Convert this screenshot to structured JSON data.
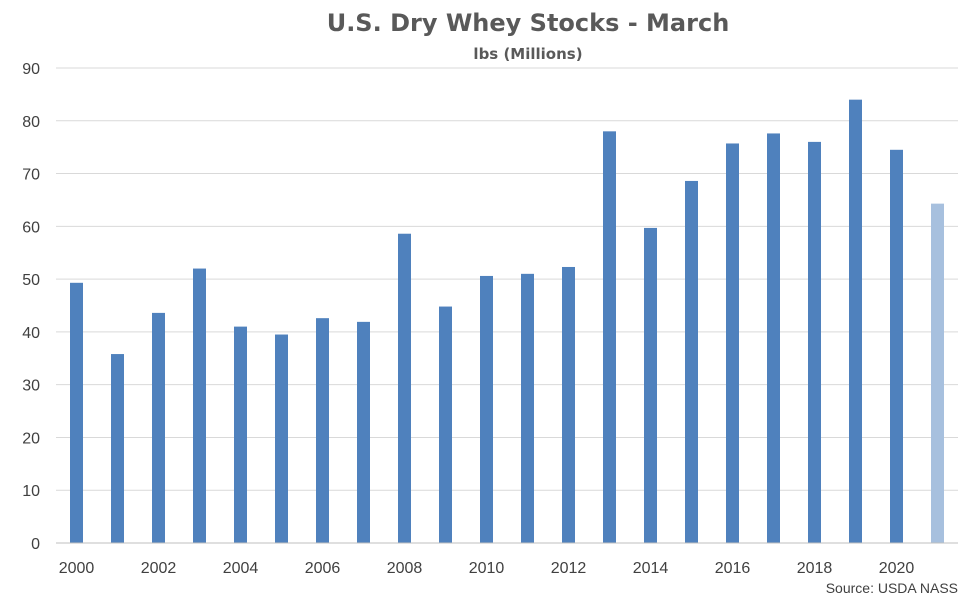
{
  "chart_data": {
    "type": "bar",
    "title": "U.S. Dry Whey Stocks - March",
    "subtitle": "lbs (Millions)",
    "source": "Source: USDA NASS",
    "categories": [
      "2000",
      "2001",
      "2002",
      "2003",
      "2004",
      "2005",
      "2006",
      "2007",
      "2008",
      "2009",
      "2010",
      "2011",
      "2012",
      "2013",
      "2014",
      "2015",
      "2016",
      "2017",
      "2018",
      "2019",
      "2020",
      "2021"
    ],
    "x_tick_labels": [
      "2000",
      "2002",
      "2004",
      "2006",
      "2008",
      "2010",
      "2012",
      "2014",
      "2016",
      "2018",
      "2020"
    ],
    "values": [
      49.3,
      35.8,
      43.6,
      52.0,
      41.0,
      39.5,
      42.6,
      41.9,
      58.6,
      44.8,
      50.6,
      51.0,
      52.3,
      78.0,
      59.7,
      68.6,
      75.7,
      77.6,
      76.0,
      84.0,
      74.5,
      64.3
    ],
    "ylim": [
      0,
      90
    ],
    "y_ticks": [
      0,
      10,
      20,
      30,
      40,
      50,
      60,
      70,
      80,
      90
    ],
    "grid": true,
    "colors": {
      "bar": "#4f81bd",
      "bar_highlight": "#a7c0de",
      "highlight_index": 21
    }
  }
}
